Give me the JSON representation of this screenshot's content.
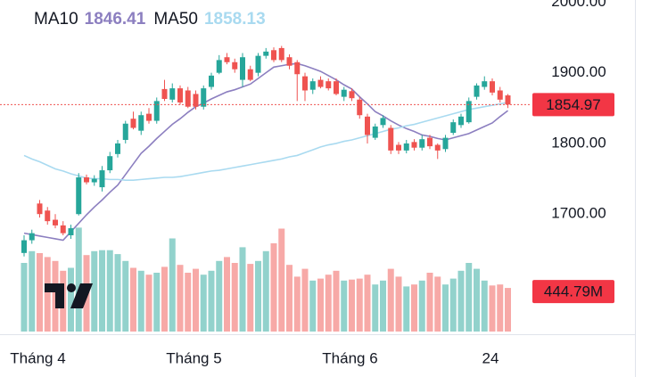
{
  "chart_data": {
    "type": "candlestick",
    "categories": [
      null,
      null,
      "Tháng 4",
      null,
      null,
      null,
      null,
      null,
      null,
      null,
      null,
      null,
      null,
      null,
      null,
      null,
      null,
      null,
      null,
      null,
      null,
      null,
      "Tháng 5",
      null,
      null,
      null,
      null,
      null,
      null,
      null,
      null,
      null,
      null,
      null,
      null,
      null,
      null,
      null,
      null,
      null,
      null,
      null,
      "Tháng 6",
      null,
      null,
      null,
      null,
      null,
      null,
      null,
      null,
      null,
      null,
      null,
      null,
      null,
      null,
      null,
      null,
      null,
      "24",
      null,
      null
    ],
    "ohlc": {
      "open": [
        1645,
        1663,
        1715,
        1705,
        1692,
        1684,
        1670,
        1700,
        1752,
        1745,
        1738,
        1762,
        1785,
        1805,
        1835,
        1818,
        1842,
        1832,
        1877,
        1862,
        1878,
        1875,
        1870,
        1852,
        1880,
        1900,
        1922,
        1915,
        1890,
        1905,
        1900,
        1924,
        1932,
        1935,
        1922,
        1915,
        1895,
        1876,
        1890,
        1888,
        1888,
        1866,
        1874,
        1862,
        1838,
        1808,
        1826,
        1822,
        1798,
        1790,
        1802,
        1794,
        1808,
        1798,
        1792,
        1815,
        1826,
        1830,
        1866,
        1880,
        1888,
        1875,
        1868
      ],
      "high": [
        1670,
        1678,
        1720,
        1710,
        1700,
        1690,
        1685,
        1758,
        1756,
        1755,
        1768,
        1788,
        1805,
        1832,
        1845,
        1845,
        1850,
        1865,
        1890,
        1885,
        1882,
        1880,
        1875,
        1882,
        1900,
        1925,
        1928,
        1920,
        1928,
        1910,
        1928,
        1935,
        1936,
        1938,
        1926,
        1918,
        1900,
        1892,
        1895,
        1892,
        1892,
        1880,
        1878,
        1866,
        1842,
        1828,
        1840,
        1826,
        1802,
        1805,
        1806,
        1812,
        1812,
        1800,
        1812,
        1834,
        1842,
        1865,
        1885,
        1895,
        1892,
        1880,
        1870
      ],
      "low": [
        1640,
        1658,
        1695,
        1685,
        1680,
        1670,
        1665,
        1698,
        1742,
        1740,
        1732,
        1758,
        1780,
        1800,
        1820,
        1812,
        1828,
        1828,
        1860,
        1858,
        1855,
        1850,
        1848,
        1848,
        1876,
        1898,
        1912,
        1900,
        1880,
        1888,
        1895,
        1920,
        1915,
        1915,
        1905,
        1860,
        1860,
        1870,
        1878,
        1875,
        1868,
        1860,
        1860,
        1835,
        1800,
        1805,
        1822,
        1785,
        1785,
        1786,
        1790,
        1790,
        1792,
        1778,
        1788,
        1812,
        1822,
        1828,
        1862,
        1876,
        1868,
        1858,
        1850
      ],
      "close": [
        1663,
        1673,
        1700,
        1690,
        1684,
        1673,
        1680,
        1752,
        1745,
        1750,
        1762,
        1782,
        1800,
        1828,
        1822,
        1840,
        1832,
        1860,
        1863,
        1878,
        1858,
        1852,
        1852,
        1878,
        1896,
        1918,
        1915,
        1905,
        1922,
        1890,
        1924,
        1930,
        1918,
        1918,
        1910,
        1898,
        1875,
        1888,
        1880,
        1878,
        1870,
        1876,
        1864,
        1840,
        1812,
        1824,
        1836,
        1790,
        1790,
        1800,
        1794,
        1806,
        1796,
        1790,
        1808,
        1830,
        1838,
        1860,
        1882,
        1888,
        1872,
        1862,
        1854.97
      ],
      "up_color": "#26a69a",
      "down_color": "#ef5350"
    },
    "ylim": [
      1530,
      2003
    ],
    "yticks": [
      {
        "value": 2000,
        "label": "2000.00"
      },
      {
        "value": 1900,
        "label": "1900.00"
      },
      {
        "value": 1800,
        "label": "1800.00"
      },
      {
        "value": 1700,
        "label": "1700.00"
      }
    ],
    "ma": [
      {
        "name": "MA10",
        "color": "#8c7fc0",
        "values": [
          1673,
          1671,
          1669,
          1667,
          1665,
          1663,
          1675,
          1687,
          1699,
          1710,
          1720,
          1731,
          1741,
          1756,
          1771,
          1786,
          1796,
          1807,
          1817,
          1827,
          1835,
          1844,
          1852,
          1857,
          1863,
          1868,
          1873,
          1876,
          1880,
          1884,
          1892,
          1900,
          1908,
          1910,
          1912,
          1913,
          1910,
          1906,
          1902,
          1896,
          1890,
          1883,
          1877,
          1866,
          1856,
          1845,
          1839,
          1832,
          1826,
          1821,
          1817,
          1812,
          1810,
          1807,
          1805,
          1808,
          1811,
          1814,
          1819,
          1824,
          1829,
          1838,
          1846.41
        ]
      },
      {
        "name": "MA50",
        "color": "#a9daf0",
        "values": [
          1783,
          1778,
          1774,
          1769,
          1764,
          1761,
          1757,
          1754,
          1751,
          1750,
          1750,
          1749,
          1749,
          1748,
          1748,
          1749,
          1750,
          1751,
          1752,
          1752,
          1753,
          1755,
          1757,
          1759,
          1761,
          1762,
          1764,
          1766,
          1768,
          1770,
          1772,
          1774,
          1776,
          1778,
          1781,
          1783,
          1787,
          1791,
          1795,
          1798,
          1800,
          1803,
          1805,
          1808,
          1811,
          1814,
          1817,
          1820,
          1822,
          1825,
          1827,
          1830,
          1833,
          1836,
          1839,
          1842,
          1845,
          1848,
          1850,
          1852,
          1854,
          1856,
          1858.13
        ]
      }
    ],
    "volume": {
      "values": [
        700,
        820,
        800,
        760,
        720,
        620,
        650,
        1060,
        780,
        820,
        830,
        830,
        790,
        720,
        650,
        620,
        580,
        600,
        660,
        950,
        680,
        600,
        640,
        580,
        620,
        720,
        760,
        700,
        860,
        690,
        720,
        820,
        900,
        1050,
        680,
        560,
        640,
        520,
        540,
        580,
        620,
        520,
        530,
        540,
        580,
        480,
        520,
        640,
        560,
        460,
        480,
        520,
        600,
        560,
        480,
        540,
        620,
        700,
        640,
        520,
        470,
        480,
        444.79
      ],
      "ylim": [
        0,
        1000
      ],
      "last_value_label": "444.79M",
      "up_color": "rgba(38,166,154,0.5)",
      "down_color": "rgba(239,83,80,0.5)",
      "label_color": "#f23645"
    }
  }
}
